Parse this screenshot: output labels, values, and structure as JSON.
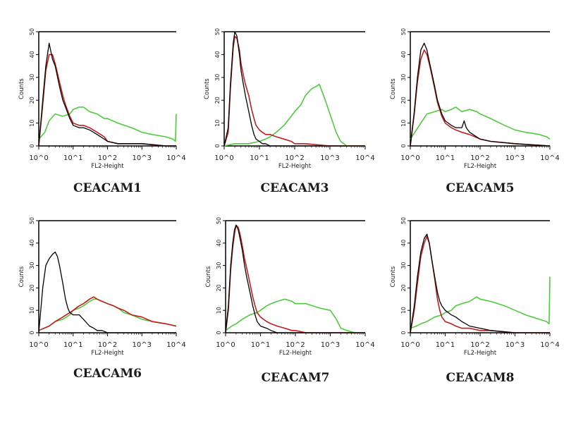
{
  "chart_data": [
    {
      "type": "line",
      "title": "CEACAM1",
      "xlabel": "FL2-Height",
      "ylabel": "Counts",
      "x_scale": "log",
      "xlim": [
        1,
        10000
      ],
      "ylim": [
        0,
        50
      ],
      "x_ticks": [
        "10^0",
        "10^1",
        "10^2",
        "10^3",
        "10^4"
      ],
      "y_ticks": [
        "0",
        "10",
        "20",
        "30",
        "40",
        "50"
      ],
      "series": [
        {
          "color": "#000000",
          "x": [
            1,
            1.3,
            1.6,
            2,
            2.5,
            3,
            4,
            5,
            6,
            8,
            10,
            15,
            20,
            30,
            50,
            80,
            100,
            200,
            500,
            1000,
            5000,
            10000
          ],
          "y": [
            0,
            20,
            35,
            45,
            38,
            35,
            26,
            20,
            17,
            12,
            9,
            8,
            8,
            7,
            5,
            3,
            2,
            1,
            1,
            1,
            0,
            0
          ]
        },
        {
          "color": "#c01e1e",
          "x": [
            1,
            1.3,
            1.6,
            2,
            2.5,
            3,
            4,
            5,
            6,
            8,
            10,
            15,
            20,
            30,
            50,
            80,
            100,
            200,
            500,
            1000,
            5000,
            10000
          ],
          "y": [
            0,
            18,
            33,
            40,
            40,
            36,
            28,
            22,
            18,
            13,
            10,
            9,
            9,
            8,
            6,
            4,
            2,
            1,
            1,
            1,
            0,
            0
          ]
        },
        {
          "color": "#4ecb3c",
          "x": [
            1,
            1.5,
            2,
            3,
            5,
            8,
            10,
            15,
            20,
            30,
            50,
            80,
            100,
            200,
            500,
            1000,
            2000,
            5000,
            8000,
            9500,
            10000
          ],
          "y": [
            3,
            6,
            11,
            14,
            13,
            14,
            16,
            17,
            17,
            15,
            14,
            12,
            12,
            10,
            8,
            6,
            5,
            4,
            3,
            2,
            14
          ]
        }
      ]
    },
    {
      "type": "line",
      "title": "CEACAM3",
      "xlabel": "FL2-Height",
      "ylabel": "Counts",
      "x_scale": "log",
      "xlim": [
        1,
        10000
      ],
      "ylim": [
        0,
        50
      ],
      "x_ticks": [
        "10^0",
        "10^1",
        "10^2",
        "10^3",
        "10^4"
      ],
      "y_ticks": [
        "0",
        "10",
        "20",
        "30",
        "40",
        "50"
      ],
      "series": [
        {
          "color": "#000000",
          "x": [
            1,
            1.3,
            1.5,
            1.8,
            2,
            2.3,
            2.7,
            3,
            3.5,
            4,
            5,
            6,
            7,
            8,
            10,
            12,
            15,
            20,
            50,
            100,
            1000,
            10000
          ],
          "y": [
            0,
            8,
            27,
            45,
            50,
            48,
            40,
            33,
            27,
            22,
            15,
            9,
            5,
            3,
            2,
            1,
            1,
            0,
            0,
            0,
            0,
            0
          ]
        },
        {
          "color": "#c01e1e",
          "x": [
            1,
            1.3,
            1.5,
            1.8,
            2,
            2.3,
            2.7,
            3,
            3.5,
            4,
            5,
            6,
            7,
            8,
            10,
            12,
            15,
            20,
            30,
            50,
            80,
            100,
            200,
            1000,
            10000
          ],
          "y": [
            0,
            6,
            25,
            43,
            48,
            47,
            42,
            36,
            31,
            27,
            22,
            16,
            12,
            9,
            7,
            6,
            5,
            5,
            4,
            3,
            2,
            1,
            1,
            0,
            0
          ]
        },
        {
          "color": "#4ecb3c",
          "x": [
            1,
            2,
            5,
            10,
            15,
            20,
            30,
            50,
            80,
            100,
            150,
            200,
            300,
            400,
            500,
            700,
            1000,
            1500,
            2000,
            3000,
            5000,
            10000
          ],
          "y": [
            0,
            1,
            1,
            2,
            3,
            4,
            6,
            9,
            13,
            15,
            18,
            22,
            25,
            26,
            27,
            21,
            14,
            6,
            2,
            0,
            0,
            0
          ]
        }
      ]
    },
    {
      "type": "line",
      "title": "CEACAM5",
      "xlabel": "FL2-Height",
      "ylabel": "Counts",
      "x_scale": "log",
      "xlim": [
        1,
        10000
      ],
      "ylim": [
        0,
        50
      ],
      "x_ticks": [
        "10^0",
        "10^1",
        "10^2",
        "10^3",
        "10^4"
      ],
      "y_ticks": [
        "0",
        "10",
        "20",
        "30",
        "40",
        "50"
      ],
      "series": [
        {
          "color": "#000000",
          "x": [
            1,
            1.3,
            1.6,
            2,
            2.5,
            3,
            3.5,
            4,
            5,
            6,
            8,
            10,
            15,
            20,
            30,
            35,
            40,
            50,
            100,
            200,
            1000,
            10000
          ],
          "y": [
            0,
            15,
            30,
            42,
            45,
            42,
            37,
            33,
            26,
            20,
            14,
            11,
            9,
            8,
            8,
            11,
            8,
            6,
            3,
            2,
            1,
            0
          ]
        },
        {
          "color": "#c01e1e",
          "x": [
            1,
            1.3,
            1.6,
            2,
            2.5,
            3,
            3.5,
            4,
            5,
            6,
            8,
            10,
            15,
            20,
            30,
            50,
            100,
            200,
            1000,
            10000
          ],
          "y": [
            0,
            14,
            28,
            38,
            42,
            40,
            36,
            32,
            25,
            19,
            13,
            10,
            8,
            7,
            6,
            5,
            3,
            2,
            1,
            0
          ]
        },
        {
          "color": "#4ecb3c",
          "x": [
            1,
            1.5,
            2,
            3,
            5,
            8,
            10,
            15,
            20,
            30,
            50,
            80,
            100,
            200,
            500,
            1000,
            2000,
            5000,
            8000,
            10000
          ],
          "y": [
            3,
            7,
            10,
            14,
            15,
            16,
            15,
            16,
            17,
            15,
            16,
            15,
            14,
            12,
            9,
            7,
            6,
            5,
            4,
            3
          ]
        }
      ]
    },
    {
      "type": "line",
      "title": "CEACAM6",
      "xlabel": "FL2-Height",
      "ylabel": "Counts",
      "x_scale": "log",
      "xlim": [
        1,
        10000
      ],
      "ylim": [
        0,
        50
      ],
      "x_ticks": [
        "10^0",
        "10^1",
        "10^2",
        "10^3",
        "10^4"
      ],
      "y_ticks": [
        "0",
        "10",
        "20",
        "30",
        "40",
        "50"
      ],
      "series": [
        {
          "color": "#000000",
          "x": [
            1,
            1.3,
            1.6,
            2,
            2.5,
            3,
            3.5,
            4,
            5,
            6,
            7,
            8,
            10,
            15,
            20,
            30,
            40,
            50,
            70,
            100,
            200,
            1000,
            10000
          ],
          "y": [
            0,
            20,
            30,
            33,
            35,
            36,
            34,
            30,
            22,
            15,
            11,
            9,
            8,
            8,
            6,
            3,
            2,
            1,
            1,
            0,
            0,
            0,
            0
          ]
        },
        {
          "color": "#c01e1e",
          "x": [
            1,
            2,
            3,
            5,
            8,
            10,
            15,
            20,
            30,
            40,
            50,
            70,
            100,
            150,
            200,
            300,
            500,
            1000,
            2000,
            5000,
            10000
          ],
          "y": [
            1,
            3,
            5,
            7,
            9,
            10,
            12,
            13,
            15,
            16,
            15,
            14,
            13,
            12,
            11,
            10,
            8,
            7,
            5,
            4,
            3
          ]
        },
        {
          "color": "#4ecb3c",
          "x": [
            1,
            2,
            3,
            5,
            8,
            10,
            15,
            20,
            30,
            40,
            50,
            70,
            100,
            150,
            200,
            300,
            500,
            1000,
            2000,
            5000,
            10000
          ],
          "y": [
            1,
            3,
            5,
            6,
            8,
            10,
            11,
            12,
            14,
            15,
            15,
            14,
            13,
            12,
            11,
            9,
            8,
            6,
            5,
            4,
            3
          ]
        }
      ]
    },
    {
      "type": "line",
      "title": "CEACAM7",
      "xlabel": "FL2-Height",
      "ylabel": "Counts",
      "x_scale": "log",
      "xlim": [
        1,
        10000
      ],
      "ylim": [
        0,
        50
      ],
      "x_ticks": [
        "10^0",
        "10^1",
        "10^2",
        "10^3",
        "10^4"
      ],
      "y_ticks": [
        "0",
        "10",
        "20",
        "30",
        "40",
        "50"
      ],
      "series": [
        {
          "color": "#000000",
          "x": [
            1,
            1.2,
            1.4,
            1.6,
            1.8,
            2,
            2.3,
            2.6,
            3,
            3.5,
            4,
            5,
            6,
            7,
            8,
            10,
            15,
            20,
            30,
            50,
            100,
            1000,
            10000
          ],
          "y": [
            0,
            12,
            30,
            40,
            46,
            48,
            46,
            42,
            37,
            30,
            25,
            18,
            12,
            8,
            5,
            3,
            2,
            1,
            0,
            0,
            0,
            0,
            0
          ]
        },
        {
          "color": "#c01e1e",
          "x": [
            1,
            1.2,
            1.4,
            1.6,
            1.8,
            2,
            2.3,
            2.6,
            3,
            3.5,
            4,
            5,
            6,
            7,
            8,
            10,
            15,
            20,
            30,
            50,
            80,
            100,
            200,
            1000,
            10000
          ],
          "y": [
            0,
            10,
            28,
            38,
            44,
            48,
            47,
            44,
            39,
            33,
            29,
            22,
            16,
            12,
            9,
            7,
            5,
            4,
            3,
            2,
            1,
            1,
            0,
            0,
            0
          ]
        },
        {
          "color": "#4ecb3c",
          "x": [
            1,
            1.5,
            2,
            3,
            5,
            8,
            10,
            15,
            20,
            30,
            50,
            80,
            100,
            200,
            500,
            1000,
            1500,
            2000,
            3000,
            5000,
            10000
          ],
          "y": [
            1,
            3,
            4,
            6,
            8,
            9,
            10,
            12,
            13,
            14,
            15,
            14,
            13,
            13,
            11,
            10,
            6,
            2,
            1,
            0,
            0
          ]
        }
      ]
    },
    {
      "type": "line",
      "title": "CEACAM8",
      "xlabel": "FL2-Height",
      "ylabel": "Counts",
      "x_scale": "log",
      "xlim": [
        1,
        10000
      ],
      "ylim": [
        0,
        50
      ],
      "x_ticks": [
        "10^0",
        "10^1",
        "10^2",
        "10^3",
        "10^4"
      ],
      "y_ticks": [
        "0",
        "10",
        "20",
        "30",
        "40",
        "50"
      ],
      "series": [
        {
          "color": "#000000",
          "x": [
            1,
            1.3,
            1.6,
            2,
            2.5,
            3,
            3.5,
            4,
            5,
            6,
            7,
            8,
            10,
            15,
            20,
            30,
            50,
            100,
            200,
            1000,
            10000
          ],
          "y": [
            0,
            12,
            25,
            36,
            42,
            44,
            40,
            34,
            25,
            18,
            14,
            12,
            10,
            8,
            7,
            5,
            3,
            2,
            1,
            0,
            0
          ]
        },
        {
          "color": "#c01e1e",
          "x": [
            1,
            1.3,
            1.6,
            2,
            2.5,
            3,
            3.5,
            4,
            5,
            6,
            7,
            8,
            10,
            15,
            20,
            30,
            50,
            100,
            200,
            1000,
            10000
          ],
          "y": [
            0,
            10,
            22,
            34,
            40,
            43,
            40,
            34,
            24,
            15,
            10,
            7,
            5,
            4,
            3,
            2,
            2,
            1,
            1,
            0,
            0
          ]
        },
        {
          "color": "#4ecb3c",
          "x": [
            1,
            1.5,
            2,
            3,
            5,
            8,
            10,
            15,
            20,
            30,
            50,
            80,
            100,
            200,
            500,
            1000,
            2000,
            5000,
            8000,
            9500,
            10000
          ],
          "y": [
            2,
            3,
            4,
            5,
            7,
            8,
            9,
            10,
            12,
            13,
            14,
            16,
            15,
            14,
            12,
            10,
            8,
            6,
            5,
            4,
            25
          ]
        }
      ]
    }
  ]
}
